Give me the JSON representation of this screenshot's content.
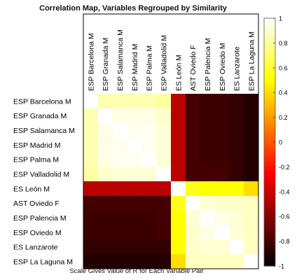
{
  "chart_data": {
    "type": "heatmap",
    "title": "Correlation Map, Variables Regrouped by Similarity",
    "caption": "Scale Gives Value of R for Each Variable Pair",
    "labels": [
      "ESP Barcelona M",
      "ESP Granada M",
      "ESP Salamanca M",
      "ESP Madrid M",
      "ESP Palma M",
      "ESP Valladolid M",
      "ES León M",
      "AST Oviedo F",
      "ESP Palencia M",
      "ESP Oviedo M",
      "ES Lanzarote",
      "ESP La Laguna M"
    ],
    "values": [
      [
        1.0,
        0.85,
        0.85,
        0.85,
        0.85,
        0.82,
        -0.45,
        -0.8,
        -0.82,
        -0.82,
        -0.85,
        -0.9
      ],
      [
        0.85,
        1.0,
        0.95,
        0.95,
        0.95,
        0.9,
        -0.45,
        -0.8,
        -0.82,
        -0.82,
        -0.85,
        -0.9
      ],
      [
        0.85,
        0.95,
        1.0,
        0.97,
        0.97,
        0.92,
        -0.45,
        -0.8,
        -0.82,
        -0.82,
        -0.85,
        -0.9
      ],
      [
        0.85,
        0.95,
        0.97,
        1.0,
        0.97,
        0.92,
        -0.45,
        -0.8,
        -0.82,
        -0.82,
        -0.85,
        -0.9
      ],
      [
        0.85,
        0.95,
        0.97,
        0.97,
        1.0,
        0.92,
        -0.45,
        -0.8,
        -0.82,
        -0.82,
        -0.85,
        -0.9
      ],
      [
        0.82,
        0.9,
        0.92,
        0.92,
        0.92,
        1.0,
        -0.45,
        -0.8,
        -0.8,
        -0.8,
        -0.85,
        -0.9
      ],
      [
        -0.45,
        -0.45,
        -0.45,
        -0.45,
        -0.45,
        -0.45,
        1.0,
        0.55,
        0.5,
        0.5,
        0.5,
        0.4
      ],
      [
        -0.8,
        -0.8,
        -0.8,
        -0.8,
        -0.8,
        -0.8,
        0.55,
        1.0,
        0.92,
        0.9,
        0.9,
        0.88
      ],
      [
        -0.82,
        -0.82,
        -0.82,
        -0.82,
        -0.82,
        -0.8,
        0.5,
        0.92,
        1.0,
        0.95,
        0.92,
        0.88
      ],
      [
        -0.82,
        -0.82,
        -0.82,
        -0.82,
        -0.82,
        -0.8,
        0.5,
        0.9,
        0.95,
        1.0,
        0.92,
        0.88
      ],
      [
        -0.85,
        -0.85,
        -0.85,
        -0.85,
        -0.85,
        -0.85,
        0.5,
        0.9,
        0.92,
        0.92,
        1.0,
        0.88
      ],
      [
        -0.9,
        -0.9,
        -0.9,
        -0.9,
        -0.9,
        -0.9,
        0.4,
        0.88,
        0.88,
        0.88,
        0.88,
        1.0
      ]
    ],
    "colorbar": {
      "range": [
        -1,
        1
      ],
      "ticks": [
        -1,
        -0.8,
        -0.6,
        -0.4,
        -0.2,
        0,
        0.2,
        0.4,
        0.6,
        0.8,
        1
      ],
      "tick_labels": [
        "-1",
        "-0.8",
        "-0.6",
        "-0.4",
        "-0.2",
        "0",
        "0.2",
        "0.4",
        "0.6",
        "0.8",
        "1"
      ],
      "colormap": "hot"
    },
    "legend": "right"
  }
}
